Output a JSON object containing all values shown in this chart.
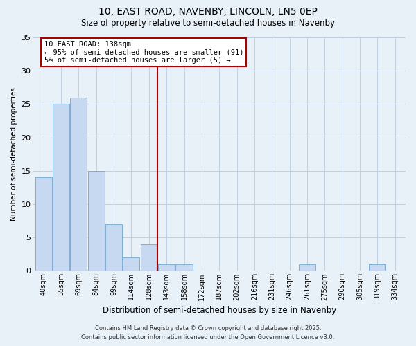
{
  "title1": "10, EAST ROAD, NAVENBY, LINCOLN, LN5 0EP",
  "title2": "Size of property relative to semi-detached houses in Navenby",
  "xlabel": "Distribution of semi-detached houses by size in Navenby",
  "ylabel": "Number of semi-detached properties",
  "categories": [
    "40sqm",
    "55sqm",
    "69sqm",
    "84sqm",
    "99sqm",
    "114sqm",
    "128sqm",
    "143sqm",
    "158sqm",
    "172sqm",
    "187sqm",
    "202sqm",
    "216sqm",
    "231sqm",
    "246sqm",
    "261sqm",
    "275sqm",
    "290sqm",
    "305sqm",
    "319sqm",
    "334sqm"
  ],
  "values": [
    14,
    25,
    26,
    15,
    7,
    2,
    4,
    1,
    1,
    0,
    0,
    0,
    0,
    0,
    0,
    1,
    0,
    0,
    0,
    1,
    0
  ],
  "bar_color": "#c6d9f0",
  "bar_edge_color": "#7bafd4",
  "vline_x_index": 7,
  "vline_color": "#aa0000",
  "annotation_title": "10 EAST ROAD: 138sqm",
  "annotation_line1": "← 95% of semi-detached houses are smaller (91)",
  "annotation_line2": "5% of semi-detached houses are larger (5) →",
  "annotation_box_color": "#ffffff",
  "annotation_box_edge": "#aa0000",
  "ylim": [
    0,
    35
  ],
  "yticks": [
    0,
    5,
    10,
    15,
    20,
    25,
    30,
    35
  ],
  "footer1": "Contains HM Land Registry data © Crown copyright and database right 2025.",
  "footer2": "Contains public sector information licensed under the Open Government Licence v3.0.",
  "bg_color": "#e8f0f8",
  "grid_color": "#c0cfe0",
  "title1_fontsize": 10,
  "title2_fontsize": 8.5,
  "xlabel_fontsize": 8.5,
  "ylabel_fontsize": 7.5,
  "tick_fontsize": 7,
  "footer_fontsize": 6
}
